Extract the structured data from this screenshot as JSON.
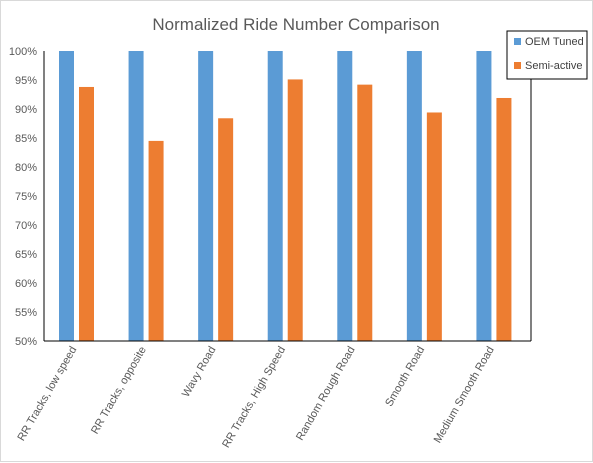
{
  "chart_data": {
    "type": "bar",
    "title": "Normalized Ride Number Comparison",
    "xlabel": "",
    "ylabel": "",
    "categories": [
      "RR Tracks, low speed",
      "RR Tracks, opposite",
      "Wavy Road",
      "RR Tracks, High Speed",
      "Random Rough Road",
      "Smooth Road",
      "Medium Smooth Road"
    ],
    "series": [
      {
        "name": "OEM Tuned",
        "color": "#5b9bd5",
        "values": [
          100,
          100,
          100,
          100,
          100,
          100,
          100
        ]
      },
      {
        "name": "Semi-active",
        "color": "#ed7d31",
        "values": [
          93.8,
          84.5,
          88.4,
          95.1,
          94.2,
          89.4,
          91.9
        ]
      }
    ],
    "ylim": [
      50,
      100
    ],
    "yticks": [
      50,
      55,
      60,
      65,
      70,
      75,
      80,
      85,
      90,
      95,
      100
    ],
    "ytick_labels": [
      "50%",
      "55%",
      "60%",
      "65%",
      "70%",
      "75%",
      "80%",
      "85%",
      "90%",
      "95%",
      "100%"
    ],
    "grid": false,
    "legend_position": "top-right",
    "colors": {
      "axis": "#000000",
      "text": "#595959",
      "border": "#d9d9d9"
    }
  }
}
